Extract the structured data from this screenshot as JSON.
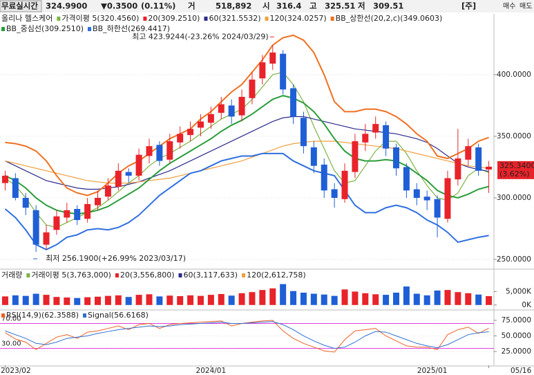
{
  "header": {
    "items": [
      "무료실시간",
      "324.9900",
      "▼0.3500",
      "(0.11%)",
      "거",
      "518,892",
      "시",
      "316.4",
      "고",
      "325.51",
      "저",
      "309.51",
      "[주]",
      "매수",
      "매도"
    ]
  },
  "chart_data": [
    {
      "type": "candlestick",
      "title": "올리나 헬스케어",
      "up_color": "#e8232a",
      "down_color": "#1f5fd6",
      "xlim": [
        -0.5,
        47.5
      ],
      "xticks": [
        {
          "value": 0,
          "label": "2023/02"
        },
        {
          "value": 20,
          "label": "2024/01"
        },
        {
          "value": 41.5,
          "label": "2025/01"
        },
        {
          "value": 47,
          "label": "05/16"
        }
      ],
      "ylim": [
        242.7,
        449.4
      ],
      "yticks": [
        {
          "value": 400,
          "label": "400.0000"
        },
        {
          "value": 350,
          "label": "350.0000"
        },
        {
          "value": 300,
          "label": "300.0000"
        },
        {
          "value": 250,
          "label": "250.0000"
        }
      ],
      "open": [
        312,
        316,
        300,
        290,
        262,
        274,
        284,
        291,
        283,
        294,
        301,
        309,
        321,
        318,
        334,
        343,
        331,
        345,
        351,
        357,
        361,
        369,
        375,
        367,
        381,
        397,
        409,
        417,
        389,
        365,
        341,
        327,
        307,
        299,
        321,
        345,
        353,
        359,
        341,
        325,
        307,
        301,
        299,
        283,
        315,
        331,
        341,
        323
      ],
      "high": [
        322,
        320,
        304,
        294,
        278,
        290,
        296,
        294,
        300,
        306,
        316,
        328,
        324,
        340,
        348,
        346,
        352,
        358,
        362,
        368,
        374,
        382,
        380,
        388,
        402,
        416,
        423.92,
        420,
        392,
        370,
        346,
        332,
        312,
        328,
        352,
        360,
        366,
        362,
        344,
        328,
        312,
        306,
        302,
        322,
        356,
        348,
        344,
        330
      ],
      "low": [
        306,
        298,
        286,
        256.19,
        258,
        270,
        280,
        278,
        280,
        290,
        298,
        306,
        312,
        314,
        328,
        326,
        328,
        340,
        346,
        350,
        356,
        364,
        360,
        362,
        376,
        392,
        404,
        384,
        360,
        336,
        320,
        300,
        292,
        296,
        316,
        338,
        348,
        334,
        318,
        300,
        294,
        290,
        268,
        280,
        310,
        326,
        318,
        304
      ],
      "close": [
        318,
        300,
        292,
        262,
        272,
        285,
        290,
        282,
        295,
        300,
        310,
        322,
        318,
        335,
        342,
        330,
        346,
        352,
        356,
        362,
        368,
        376,
        366,
        382,
        396,
        410,
        418,
        388,
        366,
        342,
        326,
        306,
        300,
        322,
        346,
        352,
        360,
        340,
        324,
        306,
        300,
        298,
        284,
        316,
        332,
        342,
        322,
        325.34
      ],
      "series": [
        {
          "name": "가격이평 5(320.4560)",
          "color": "#7cb342",
          "values": [
            316,
            310,
            300,
            288,
            278,
            276,
            280,
            284,
            288,
            292,
            298,
            305,
            312,
            318,
            326,
            332,
            336,
            341,
            346,
            352,
            358,
            364,
            368,
            372,
            380,
            390,
            400,
            402,
            392,
            378,
            358,
            340,
            322,
            312,
            314,
            326,
            338,
            346,
            346,
            336,
            322,
            310,
            300,
            298,
            304,
            318,
            324,
            320.46
          ]
        },
        {
          "name": "20(309.2510)",
          "color": "#e8232a",
          "values": [
            318,
            314,
            308,
            300,
            294,
            290,
            288,
            287,
            288,
            290,
            293,
            298,
            303,
            308,
            315,
            322,
            328,
            333,
            338,
            343,
            348,
            354,
            359,
            363,
            368,
            374,
            380,
            383,
            381,
            377,
            370,
            360,
            348,
            338,
            332,
            330,
            330,
            331,
            330,
            326,
            320,
            314,
            306,
            302,
            300,
            303,
            307,
            309.25
          ]
        },
        {
          "name": "60(321.5532)",
          "color": "#2b2b8c",
          "values": [
            330,
            326,
            322,
            318,
            314,
            312,
            310,
            308,
            307,
            307,
            308,
            309,
            311,
            313,
            316,
            319,
            322,
            326,
            330,
            334,
            338,
            342,
            346,
            350,
            354,
            358,
            362,
            365,
            366,
            366,
            364,
            362,
            360,
            358,
            356,
            355,
            354,
            353,
            352,
            350,
            348,
            345,
            340,
            334,
            328,
            325,
            323,
            321.55
          ]
        },
        {
          "name": "120(324.0257)",
          "color": "#f0a040",
          "values": [
            330,
            328,
            326,
            324,
            322,
            320,
            318,
            316,
            314,
            313,
            312,
            312,
            312,
            313,
            314,
            315,
            316,
            318,
            320,
            322,
            324,
            326,
            328,
            330,
            333,
            336,
            339,
            342,
            344,
            345,
            346,
            346,
            346,
            345,
            344,
            343,
            342,
            341,
            340,
            338,
            336,
            334,
            332,
            330,
            328,
            326,
            325,
            324.03
          ]
        },
        {
          "name": "BB_상한선(20,2,c)(349.0603)",
          "color": "#f07020",
          "values": [
            345,
            344,
            342,
            338,
            330,
            318,
            308,
            304,
            302,
            305,
            312,
            320,
            326,
            330,
            336,
            342,
            348,
            352,
            356,
            364,
            370,
            378,
            386,
            392,
            402,
            412,
            424,
            430,
            432,
            428,
            418,
            400,
            378,
            370,
            370,
            372,
            372,
            370,
            366,
            360,
            352,
            346,
            334,
            332,
            336,
            340,
            346,
            349.06
          ]
        },
        {
          "name": "BB_중심선(309.2510)",
          "color": "#2a9d3a",
          "values": [
            318,
            314,
            308,
            300,
            294,
            290,
            288,
            287,
            288,
            290,
            293,
            298,
            303,
            308,
            315,
            322,
            328,
            333,
            338,
            343,
            348,
            354,
            359,
            363,
            368,
            374,
            380,
            383,
            381,
            377,
            370,
            360,
            348,
            338,
            332,
            330,
            330,
            331,
            330,
            326,
            320,
            314,
            306,
            302,
            300,
            303,
            307,
            309.25
          ]
        },
        {
          "name": "BB_하한선(269.4417)",
          "color": "#2f6fe0",
          "values": [
            291,
            284,
            274,
            262,
            258,
            262,
            268,
            270,
            274,
            275,
            274,
            276,
            280,
            286,
            294,
            302,
            308,
            314,
            320,
            322,
            326,
            330,
            332,
            334,
            334,
            336,
            336,
            336,
            330,
            326,
            322,
            320,
            318,
            306,
            294,
            288,
            288,
            292,
            294,
            292,
            288,
            282,
            278,
            272,
            264,
            266,
            268,
            269.44
          ]
        }
      ],
      "annotations": [
        {
          "text": "최고 423.9244(-23.26% 2024/03/29)",
          "index": 26,
          "value": 423.9244,
          "color": "#e8232a"
        },
        {
          "text": "최저 256.1900(+26.99% 2023/03/17)",
          "index": 3,
          "value": 256.19,
          "color": "#1f5fd6"
        }
      ],
      "last": {
        "value": 325.34,
        "label": "325.3400",
        "change": "(3.62%)",
        "color": "#e8232a"
      }
    },
    {
      "type": "bar",
      "title": "거래량",
      "legend": [
        {
          "name": "거래이평 5(3,763,000)",
          "color": "#7cb342"
        },
        {
          "name": "20(3,556,800)",
          "color": "#e8232a"
        },
        {
          "name": "60(3,117,633)",
          "color": "#2b2b8c"
        },
        {
          "name": "120(2,612,758)",
          "color": "#f0a040"
        }
      ],
      "ylim": [
        -1600,
        12600
      ],
      "yticks": [
        {
          "value": 5000,
          "label": "5,000K"
        },
        {
          "value": 0,
          "label": "0K"
        }
      ],
      "values": [
        3200,
        3600,
        3400,
        4200,
        3800,
        3000,
        2800,
        2600,
        2900,
        3100,
        3400,
        3600,
        3000,
        3800,
        4000,
        3200,
        3500,
        3300,
        3600,
        3400,
        3800,
        4100,
        3500,
        4400,
        4800,
        5600,
        6200,
        7800,
        5200,
        4600,
        4200,
        3900,
        3400,
        5800,
        5000,
        4400,
        4000,
        3800,
        4600,
        6900,
        4200,
        3600,
        5400,
        5600,
        4800,
        4400,
        3900,
        3300
      ]
    },
    {
      "type": "line",
      "ylim": [
        2.8,
        89.4
      ],
      "yticks": [
        {
          "value": 75,
          "label": "75.0000"
        },
        {
          "value": 50,
          "label": "50.0000"
        },
        {
          "value": 25,
          "label": "25.0000"
        }
      ],
      "hlines": [
        {
          "value": 70,
          "label": "70.00"
        },
        {
          "value": 30,
          "label": "30.00"
        }
      ],
      "hline_color": "#e040e0",
      "series": [
        {
          "name": "RSI(14,9)(62.3588)",
          "color": "#f06020",
          "values": [
            55,
            45,
            40,
            28,
            38,
            48,
            52,
            46,
            56,
            58,
            62,
            66,
            60,
            68,
            70,
            62,
            68,
            70,
            71,
            72,
            73,
            74,
            66,
            70,
            72,
            74,
            75,
            58,
            46,
            38,
            32,
            26,
            24,
            44,
            58,
            60,
            62,
            50,
            42,
            34,
            32,
            32,
            28,
            52,
            60,
            64,
            54,
            62.36
          ]
        },
        {
          "name": "Signal(56.6168)",
          "color": "#3070d0",
          "values": [
            58,
            52,
            46,
            38,
            36,
            40,
            46,
            48,
            50,
            54,
            57,
            60,
            62,
            64,
            66,
            65,
            66,
            68,
            69,
            70,
            71,
            72,
            70,
            70,
            71,
            72,
            73,
            68,
            60,
            50,
            42,
            35,
            30,
            32,
            40,
            50,
            57,
            56,
            50,
            44,
            38,
            34,
            31,
            36,
            44,
            52,
            55,
            56.62
          ]
        }
      ]
    }
  ]
}
